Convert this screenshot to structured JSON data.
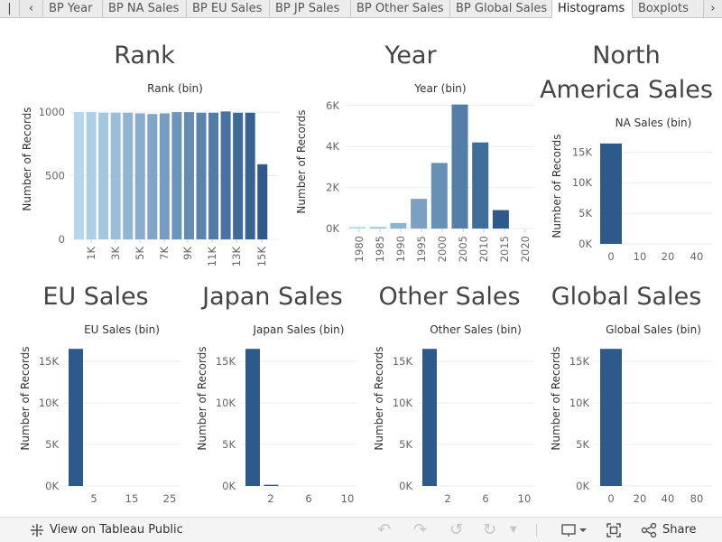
{
  "tabs": [
    {
      "label": "BP Year",
      "active": false
    },
    {
      "label": "BP NA Sales",
      "active": false
    },
    {
      "label": "BP EU Sales",
      "active": false
    },
    {
      "label": "BP JP Sales",
      "active": false
    },
    {
      "label": "BP Other Sales",
      "active": false
    },
    {
      "label": "BP Global Sales",
      "active": false
    },
    {
      "label": "Histograms",
      "active": true
    },
    {
      "label": "Boxplots",
      "active": false
    }
  ],
  "toolbar": {
    "view_label": "View on Tableau Public",
    "share_label": "Share",
    "icons": [
      "tableau-logo-icon",
      "undo-icon",
      "redo-icon",
      "revert-icon",
      "refresh-icon",
      "dropdown-icon",
      "download-icon",
      "fullscreen-icon",
      "share-icon"
    ]
  },
  "colors": {
    "dark": "#2d5a8b",
    "light": "#b5d7ec",
    "grid": "#ececec"
  },
  "chart_data": [
    {
      "type": "bar",
      "panel_title": "Rank",
      "title": "Rank (bin)",
      "ylabel": "Number of Records",
      "ylim": [
        0,
        1100
      ],
      "yticks": [
        {
          "v": 0,
          "label": "0"
        },
        {
          "v": 500,
          "label": "500"
        },
        {
          "v": 1000,
          "label": "1000"
        }
      ],
      "xticks": [
        "1K",
        "3K",
        "5K",
        "7K",
        "9K",
        "11K",
        "13K",
        "15K"
      ],
      "values": [
        1000,
        1000,
        995,
        995,
        995,
        990,
        985,
        990,
        1000,
        1000,
        995,
        995,
        1005,
        995,
        995,
        590
      ],
      "gradient": true
    },
    {
      "type": "bar",
      "panel_title": "Year",
      "title": "Year (bin)",
      "ylabel": "Number of Records",
      "ylim": [
        0,
        6300
      ],
      "yticks": [
        {
          "v": 0,
          "label": "0K"
        },
        {
          "v": 2000,
          "label": "2K"
        },
        {
          "v": 4000,
          "label": "4K"
        },
        {
          "v": 6000,
          "label": "6K"
        }
      ],
      "xticks": [
        "1980",
        "1985",
        "1990",
        "1995",
        "2000",
        "2005",
        "2010",
        "2015",
        "2020"
      ],
      "values": [
        80,
        80,
        270,
        1450,
        3200,
        6050,
        4200,
        900
      ],
      "gradient": true
    },
    {
      "type": "bar",
      "panel_title": "North America Sales",
      "title": "NA Sales (bin)",
      "ylabel": "Number of Records",
      "ylim": [
        0,
        18000
      ],
      "yticks": [
        {
          "v": 0,
          "label": "0K"
        },
        {
          "v": 5000,
          "label": "5K"
        },
        {
          "v": 10000,
          "label": "10K"
        },
        {
          "v": 15000,
          "label": "15K"
        }
      ],
      "xticks": [
        "0",
        "10",
        "20",
        "40"
      ],
      "values": [
        16400,
        0,
        0,
        0,
        0
      ],
      "gradient": false
    },
    {
      "type": "bar",
      "panel_title": "EU Sales",
      "title": "EU Sales (bin)",
      "ylabel": "Number of Records",
      "ylim": [
        0,
        17500
      ],
      "yticks": [
        {
          "v": 0,
          "label": "0K"
        },
        {
          "v": 5000,
          "label": "5K"
        },
        {
          "v": 10000,
          "label": "10K"
        },
        {
          "v": 15000,
          "label": "15K"
        }
      ],
      "xticks": [
        "5",
        "15",
        "25"
      ],
      "values": [
        16500,
        0,
        0,
        0,
        0,
        0,
        0
      ],
      "gradient": false
    },
    {
      "type": "bar",
      "panel_title": "Japan Sales",
      "title": "Japan Sales (bin)",
      "ylabel": "Number of Records",
      "ylim": [
        0,
        17500
      ],
      "yticks": [
        {
          "v": 0,
          "label": "0K"
        },
        {
          "v": 5000,
          "label": "5K"
        },
        {
          "v": 10000,
          "label": "10K"
        },
        {
          "v": 15000,
          "label": "15K"
        }
      ],
      "xticks": [
        "2",
        "6",
        "10"
      ],
      "values": [
        16500,
        150,
        0,
        0,
        0,
        0,
        0
      ],
      "gradient": false
    },
    {
      "type": "bar",
      "panel_title": "Other Sales",
      "title": "Other Sales (bin)",
      "ylabel": "Number of Records",
      "ylim": [
        0,
        17500
      ],
      "yticks": [
        {
          "v": 0,
          "label": "0K"
        },
        {
          "v": 5000,
          "label": "5K"
        },
        {
          "v": 10000,
          "label": "10K"
        },
        {
          "v": 15000,
          "label": "15K"
        }
      ],
      "xticks": [
        "2",
        "6",
        "10"
      ],
      "values": [
        16500,
        0,
        0,
        0,
        0,
        0,
        0
      ],
      "gradient": false
    },
    {
      "type": "bar",
      "panel_title": "Global Sales",
      "title": "Global Sales (bin)",
      "ylabel": "Number of Records",
      "ylim": [
        0,
        17500
      ],
      "yticks": [
        {
          "v": 0,
          "label": "0K"
        },
        {
          "v": 5000,
          "label": "5K"
        },
        {
          "v": 10000,
          "label": "10K"
        },
        {
          "v": 15000,
          "label": "15K"
        }
      ],
      "xticks": [
        "0",
        "20",
        "40",
        "80"
      ],
      "values": [
        16500,
        0,
        0,
        0,
        0
      ],
      "gradient": false
    }
  ]
}
